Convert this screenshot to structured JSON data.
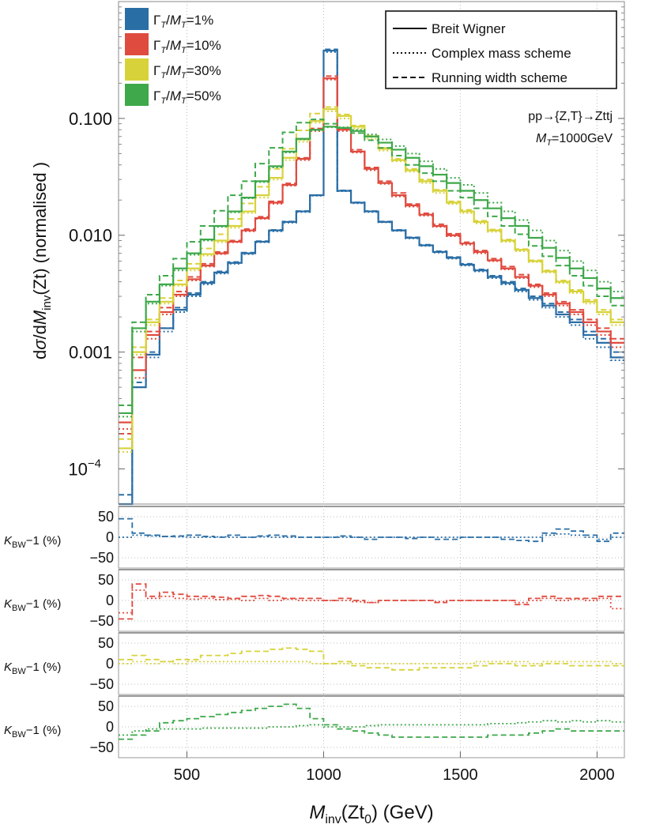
{
  "chart_data": {
    "type": "line",
    "xlabel": "Minv(Zt0) (GeV)",
    "ylabel": "dσ/dMinv(Zt) (normalised)",
    "xlim": [
      250,
      2100
    ],
    "ylim": [
      5e-05,
      1.0
    ],
    "y_scale": "log",
    "x_ticks": [
      500,
      1000,
      1500,
      2000
    ],
    "x_tick_labels": [
      "500",
      "1000",
      "1500",
      "2000"
    ],
    "y_ticks": [
      0.0001,
      0.001,
      0.01,
      0.1
    ],
    "y_tick_labels": [
      "10−4",
      "0.001",
      "0.010",
      "0.100"
    ],
    "annotation": {
      "process": "pp→{Z,T}→Zttj",
      "mass": "MT=1000GeV"
    },
    "legend_schemes": {
      "placement": "top-right",
      "entries": [
        {
          "label": "Breit Wigner",
          "dash": "solid"
        },
        {
          "label": "Complex mass scheme",
          "dash": "dotted"
        },
        {
          "label": "Running width scheme",
          "dash": "dashed"
        }
      ]
    },
    "legend_widths": {
      "placement": "top-left",
      "entries": [
        {
          "label": "ΓT/MT=1%",
          "color": "#2a6ea6"
        },
        {
          "label": "ΓT/MT=10%",
          "color": "#e04b3f"
        },
        {
          "label": "ΓT/MT=30%",
          "color": "#d8d23a"
        },
        {
          "label": "ΓT/MT=50%",
          "color": "#3ea84a"
        }
      ]
    },
    "bins": [
      250,
      300,
      350,
      400,
      450,
      500,
      550,
      600,
      650,
      700,
      750,
      800,
      850,
      900,
      950,
      1000,
      1050,
      1100,
      1150,
      1200,
      1250,
      1300,
      1350,
      1400,
      1450,
      1500,
      1550,
      1600,
      1650,
      1700,
      1750,
      1800,
      1850,
      1900,
      1950,
      2000,
      2050,
      2100
    ],
    "series": [
      {
        "name": "ΓT/MT=1%",
        "color": "#2a6ea6",
        "bw": [
          4e-05,
          0.0005,
          0.00095,
          0.0016,
          0.0023,
          0.0031,
          0.0039,
          0.0048,
          0.0058,
          0.007,
          0.0088,
          0.011,
          0.013,
          0.016,
          0.022,
          0.38,
          0.024,
          0.019,
          0.016,
          0.013,
          0.011,
          0.0095,
          0.0082,
          0.0072,
          0.0064,
          0.0056,
          0.005,
          0.0044,
          0.0039,
          0.0034,
          0.0029,
          0.0025,
          0.0021,
          0.0018,
          0.0014,
          0.0012,
          0.0009
        ],
        "complex": [
          4e-05,
          0.0005,
          0.0009,
          0.0015,
          0.0022,
          0.003,
          0.0038,
          0.0047,
          0.0057,
          0.0069,
          0.0087,
          0.0108,
          0.0128,
          0.0158,
          0.0218,
          0.37,
          0.0238,
          0.0188,
          0.0158,
          0.0129,
          0.0109,
          0.0094,
          0.0081,
          0.0071,
          0.0063,
          0.0055,
          0.0049,
          0.0043,
          0.0038,
          0.0033,
          0.0028,
          0.0024,
          0.002,
          0.0017,
          0.0013,
          0.0011,
          0.00085
        ],
        "running": [
          6e-05,
          0.00055,
          0.001,
          0.0016,
          0.0024,
          0.0032,
          0.004,
          0.0049,
          0.0059,
          0.0071,
          0.0089,
          0.0111,
          0.0131,
          0.0161,
          0.0221,
          0.39,
          0.0242,
          0.0191,
          0.0161,
          0.0131,
          0.0111,
          0.0096,
          0.0083,
          0.0073,
          0.0065,
          0.0057,
          0.0051,
          0.0045,
          0.004,
          0.0035,
          0.003,
          0.0026,
          0.0022,
          0.0019,
          0.0015,
          0.0013,
          0.001
        ],
        "ratio_complex": [
          0,
          5,
          3,
          2,
          1,
          0,
          0,
          1,
          0,
          0,
          1,
          0,
          0,
          0,
          0,
          0,
          0,
          0,
          0,
          0,
          0,
          0,
          0,
          0,
          0,
          0,
          0,
          0,
          0,
          0,
          0,
          5,
          8,
          5,
          0,
          -5,
          0
        ],
        "ratio_running": [
          45,
          10,
          5,
          2,
          3,
          5,
          2,
          0,
          5,
          0,
          3,
          5,
          3,
          0,
          0,
          0,
          3,
          0,
          -5,
          0,
          0,
          -3,
          0,
          -5,
          -5,
          0,
          0,
          0,
          -5,
          -8,
          -10,
          10,
          20,
          15,
          5,
          -10,
          10
        ]
      },
      {
        "name": "ΓT/MT=10%",
        "color": "#e04b3f",
        "bw": [
          0.00025,
          0.0007,
          0.0014,
          0.0022,
          0.0031,
          0.0042,
          0.0055,
          0.007,
          0.0088,
          0.011,
          0.014,
          0.019,
          0.027,
          0.045,
          0.08,
          0.22,
          0.08,
          0.052,
          0.037,
          0.028,
          0.022,
          0.018,
          0.015,
          0.012,
          0.01,
          0.0085,
          0.0072,
          0.0061,
          0.0052,
          0.0044,
          0.0037,
          0.0031,
          0.0026,
          0.0022,
          0.0018,
          0.0015,
          0.0012
        ],
        "complex": [
          0.00022,
          0.0006,
          0.0013,
          0.0021,
          0.003,
          0.0041,
          0.0054,
          0.0069,
          0.0087,
          0.0108,
          0.0138,
          0.0186,
          0.0265,
          0.044,
          0.078,
          0.215,
          0.078,
          0.051,
          0.036,
          0.0275,
          0.0215,
          0.0176,
          0.0147,
          0.0118,
          0.0098,
          0.0083,
          0.007,
          0.006,
          0.0051,
          0.0043,
          0.0036,
          0.003,
          0.0025,
          0.0021,
          0.0017,
          0.0014,
          0.0011
        ],
        "running": [
          0.0002,
          0.0009,
          0.0015,
          0.0024,
          0.0033,
          0.0044,
          0.0057,
          0.0072,
          0.009,
          0.0113,
          0.0144,
          0.0195,
          0.0278,
          0.046,
          0.082,
          0.23,
          0.082,
          0.054,
          0.038,
          0.029,
          0.023,
          0.0185,
          0.0154,
          0.0124,
          0.0103,
          0.0087,
          0.0074,
          0.0063,
          0.0054,
          0.0046,
          0.0038,
          0.0032,
          0.0027,
          0.0023,
          0.0019,
          0.0016,
          0.0013
        ],
        "ratio_complex": [
          -30,
          25,
          5,
          10,
          5,
          3,
          5,
          2,
          3,
          0,
          5,
          0,
          3,
          0,
          0,
          0,
          0,
          -3,
          -5,
          0,
          0,
          0,
          0,
          -3,
          0,
          0,
          0,
          0,
          0,
          -5,
          0,
          5,
          0,
          3,
          0,
          5,
          -20
        ],
        "ratio_running": [
          -45,
          40,
          10,
          20,
          15,
          10,
          10,
          8,
          5,
          10,
          12,
          10,
          5,
          5,
          5,
          0,
          5,
          0,
          -5,
          0,
          0,
          0,
          0,
          -5,
          0,
          0,
          0,
          0,
          0,
          -10,
          5,
          10,
          5,
          5,
          5,
          10,
          10
        ]
      },
      {
        "name": "ΓT/MT=30%",
        "color": "#d8d23a",
        "bw": [
          0.00015,
          0.001,
          0.0018,
          0.0027,
          0.0038,
          0.0052,
          0.0069,
          0.009,
          0.012,
          0.016,
          0.022,
          0.031,
          0.046,
          0.066,
          0.095,
          0.12,
          0.105,
          0.085,
          0.07,
          0.055,
          0.044,
          0.036,
          0.029,
          0.024,
          0.019,
          0.016,
          0.013,
          0.011,
          0.009,
          0.0075,
          0.006,
          0.0049,
          0.004,
          0.0033,
          0.0027,
          0.0022,
          0.0018
        ],
        "complex": [
          0.00014,
          0.00095,
          0.0017,
          0.0026,
          0.0037,
          0.005,
          0.0067,
          0.0087,
          0.0116,
          0.0155,
          0.021,
          0.03,
          0.044,
          0.063,
          0.092,
          0.115,
          0.1,
          0.082,
          0.067,
          0.053,
          0.043,
          0.035,
          0.028,
          0.023,
          0.0185,
          0.0155,
          0.0126,
          0.0107,
          0.0088,
          0.0073,
          0.0059,
          0.0048,
          0.0039,
          0.0032,
          0.0026,
          0.0021,
          0.0017
        ],
        "running": [
          0.00018,
          0.0011,
          0.0019,
          0.0029,
          0.0041,
          0.0057,
          0.0077,
          0.0102,
          0.0138,
          0.0187,
          0.026,
          0.037,
          0.055,
          0.079,
          0.11,
          0.125,
          0.108,
          0.087,
          0.071,
          0.056,
          0.045,
          0.037,
          0.03,
          0.0245,
          0.0195,
          0.0165,
          0.0133,
          0.0112,
          0.0092,
          0.0076,
          0.0061,
          0.005,
          0.0041,
          0.0034,
          0.0028,
          0.0023,
          0.0019
        ],
        "ratio_complex": [
          0,
          5,
          0,
          5,
          0,
          5,
          5,
          5,
          5,
          5,
          5,
          5,
          5,
          5,
          0,
          0,
          0,
          0,
          0,
          0,
          0,
          0,
          0,
          0,
          0,
          0,
          5,
          5,
          5,
          5,
          0,
          5,
          5,
          5,
          5,
          5,
          0
        ],
        "ratio_running": [
          10,
          20,
          10,
          5,
          10,
          10,
          20,
          20,
          25,
          30,
          30,
          35,
          38,
          35,
          30,
          0,
          5,
          -5,
          -10,
          -10,
          -15,
          -15,
          -10,
          -10,
          -10,
          -10,
          -5,
          0,
          0,
          -5,
          -5,
          0,
          0,
          -5,
          -5,
          -5,
          -5
        ]
      },
      {
        "name": "ΓT/MT=50%",
        "color": "#3ea84a",
        "bw": [
          0.0003,
          0.0016,
          0.0027,
          0.0038,
          0.0052,
          0.007,
          0.0092,
          0.012,
          0.016,
          0.021,
          0.029,
          0.039,
          0.052,
          0.067,
          0.08,
          0.085,
          0.083,
          0.078,
          0.07,
          0.062,
          0.054,
          0.046,
          0.039,
          0.033,
          0.028,
          0.024,
          0.02,
          0.017,
          0.014,
          0.012,
          0.0095,
          0.0078,
          0.0064,
          0.0052,
          0.0043,
          0.0035,
          0.0029
        ],
        "complex": [
          0.00028,
          0.0015,
          0.0026,
          0.0037,
          0.005,
          0.0068,
          0.009,
          0.0118,
          0.0157,
          0.0207,
          0.0285,
          0.038,
          0.051,
          0.066,
          0.079,
          0.084,
          0.084,
          0.08,
          0.073,
          0.066,
          0.058,
          0.05,
          0.043,
          0.037,
          0.031,
          0.027,
          0.023,
          0.019,
          0.016,
          0.0135,
          0.011,
          0.009,
          0.0074,
          0.006,
          0.005,
          0.004,
          0.0033
        ],
        "running": [
          0.00035,
          0.0018,
          0.0031,
          0.0045,
          0.0063,
          0.0088,
          0.012,
          0.0162,
          0.022,
          0.029,
          0.041,
          0.056,
          0.076,
          0.092,
          0.098,
          0.09,
          0.083,
          0.075,
          0.065,
          0.056,
          0.048,
          0.04,
          0.034,
          0.029,
          0.024,
          0.021,
          0.017,
          0.0145,
          0.012,
          0.0102,
          0.0081,
          0.0066,
          0.0055,
          0.0045,
          0.0037,
          0.003,
          0.0025
        ],
        "ratio_complex": [
          -20,
          -10,
          -5,
          -5,
          -5,
          -5,
          -3,
          -3,
          -3,
          -3,
          -3,
          0,
          0,
          3,
          5,
          0,
          0,
          0,
          3,
          5,
          5,
          5,
          5,
          5,
          5,
          5,
          5,
          8,
          8,
          10,
          12,
          15,
          12,
          15,
          12,
          15,
          12
        ],
        "ratio_running": [
          -30,
          -20,
          -10,
          10,
          15,
          20,
          25,
          30,
          35,
          40,
          45,
          50,
          55,
          45,
          20,
          5,
          -5,
          -10,
          -15,
          -20,
          -25,
          -25,
          -25,
          -25,
          -25,
          -25,
          -25,
          -20,
          -20,
          -20,
          -15,
          -10,
          -5,
          -10,
          -10,
          -10,
          -10
        ]
      }
    ],
    "ratio_panels": {
      "ylabel": "KBW−1 (%)",
      "ylim": [
        -75,
        75
      ],
      "y_ticks": [
        -50,
        0,
        50
      ],
      "y_tick_labels": [
        "−50",
        "0",
        "50"
      ]
    }
  }
}
